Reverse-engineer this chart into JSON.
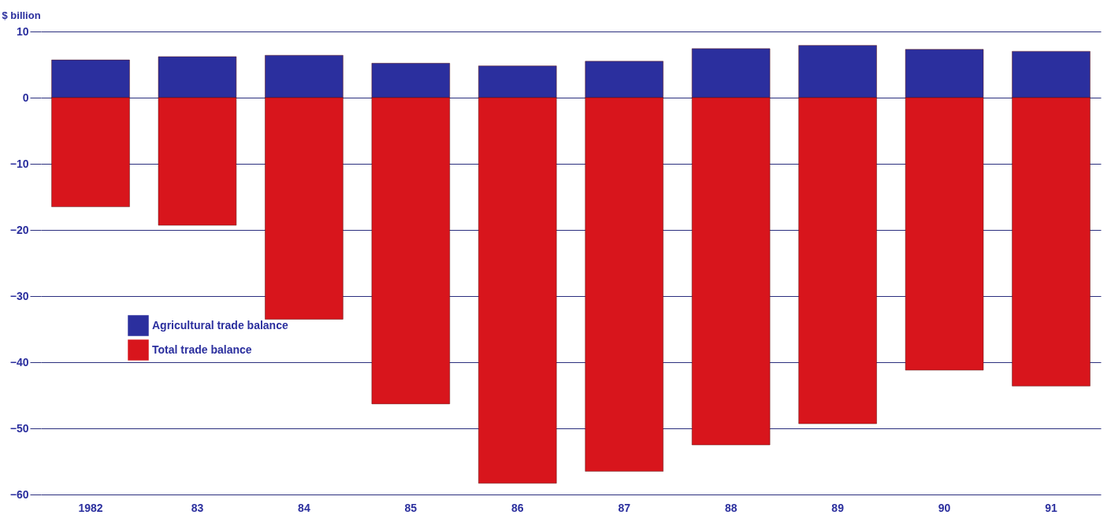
{
  "chart_data": {
    "type": "bar",
    "ylabel": "$ billion",
    "categories": [
      "1982",
      "83",
      "84",
      "85",
      "86",
      "87",
      "88",
      "89",
      "90",
      "91"
    ],
    "series": [
      {
        "name": "Agricultural trade balance",
        "color": "#2b2f9e",
        "values": [
          5.7,
          6.2,
          6.4,
          5.2,
          4.8,
          5.5,
          7.4,
          7.9,
          7.3,
          7.0
        ]
      },
      {
        "name": "Total trade balance",
        "color": "#d8151c",
        "values": [
          -16.5,
          -19.3,
          -33.5,
          -46.3,
          -58.3,
          -56.5,
          -52.5,
          -49.3,
          -41.2,
          -43.6
        ]
      }
    ],
    "ylim": [
      -60,
      10
    ],
    "yticks": [
      -60,
      -50,
      -40,
      -30,
      -20,
      -10,
      0,
      10
    ],
    "grid": true,
    "legend": "left",
    "stacked": true
  }
}
